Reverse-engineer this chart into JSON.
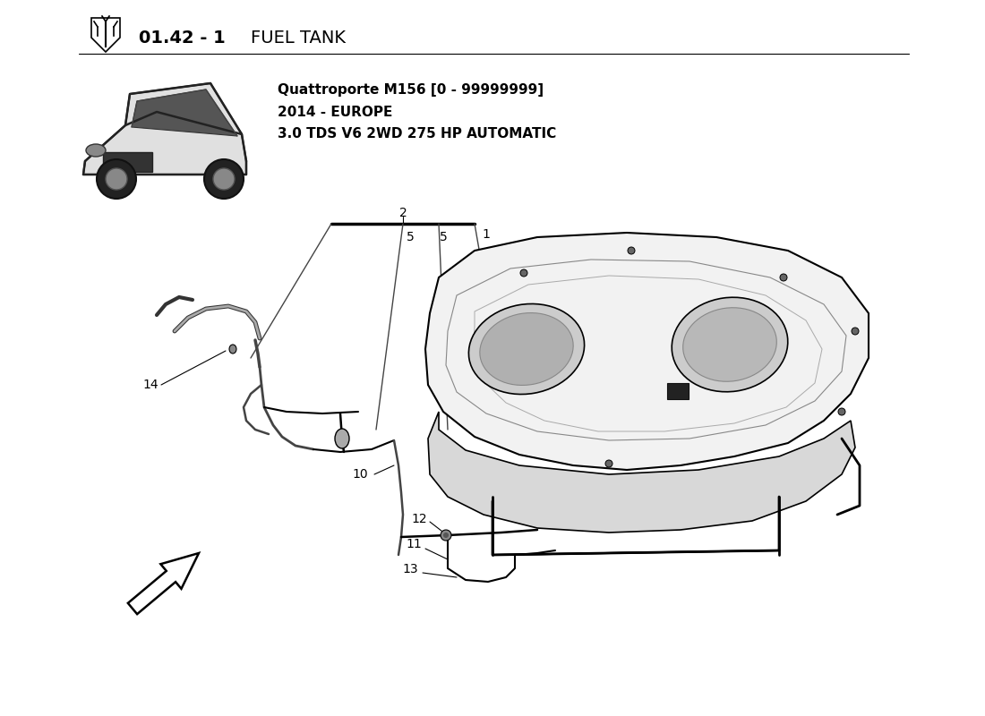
{
  "title_bold_part": "01.42 - 1",
  "title_normal_part": "FUEL TANK",
  "car_model_line1": "Quattroporte M156 [0 - 99999999]",
  "car_model_line2": "2014 - EUROPE",
  "car_model_line3": "3.0 TDS V6 2WD 275 HP AUTOMATIC",
  "background_color": "#ffffff",
  "text_color": "#000000",
  "line_color": "#000000",
  "fig_width": 11.0,
  "fig_height": 8.0,
  "dpi": 100
}
